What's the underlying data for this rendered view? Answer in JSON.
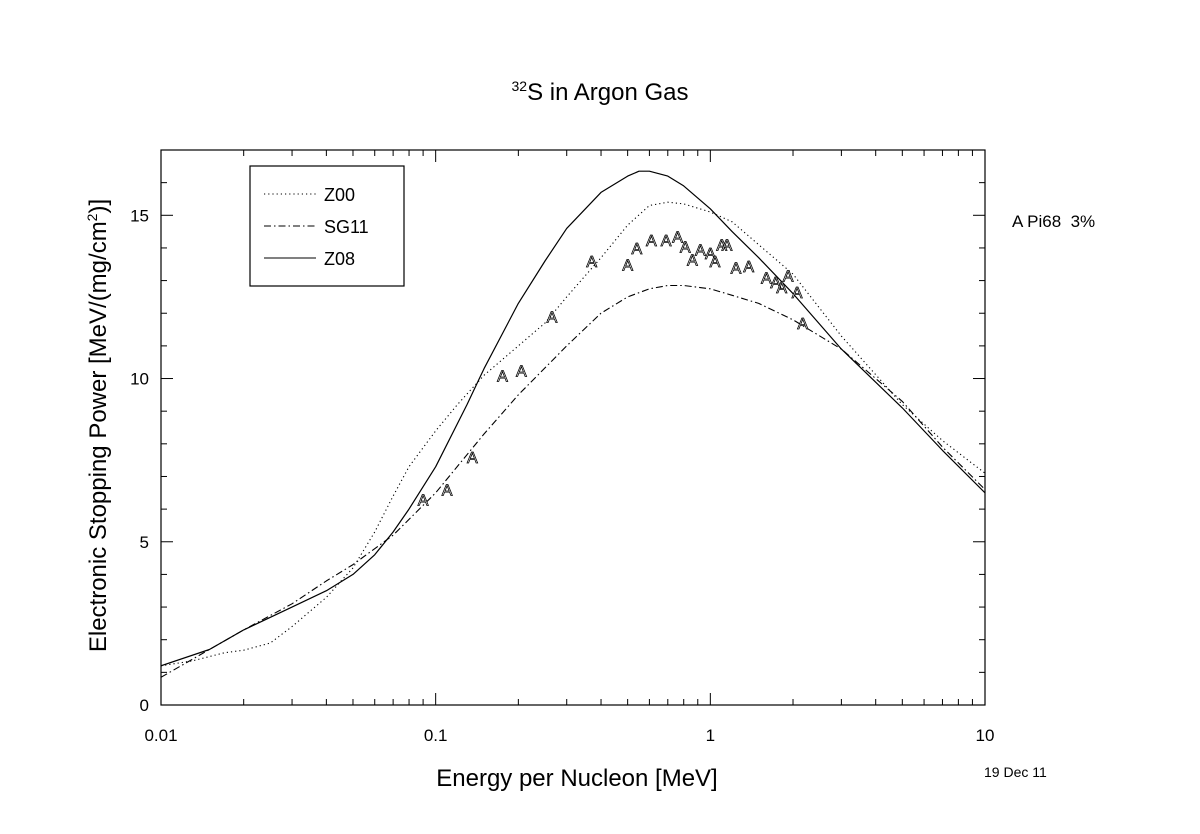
{
  "chart_data": {
    "type": "line",
    "title_sup": "32",
    "title_main": "S in Argon Gas",
    "xlabel": "Energy per Nucleon [MeV]",
    "ylabel": "Electronic Stopping Power [MeV/(mg/cm",
    "ylabel_sup": "2",
    "ylabel_end": ")]",
    "xscale": "log",
    "xlim": [
      0.01,
      10
    ],
    "ylim": [
      0,
      17
    ],
    "x_ticks": [
      {
        "value": 0.01,
        "label": "0.01"
      },
      {
        "value": 0.1,
        "label": "0.1"
      },
      {
        "value": 1,
        "label": "1"
      },
      {
        "value": 10,
        "label": "10"
      }
    ],
    "y_ticks": [
      {
        "value": 0,
        "label": "0"
      },
      {
        "value": 5,
        "label": "5"
      },
      {
        "value": 10,
        "label": "10"
      },
      {
        "value": 15,
        "label": "15"
      }
    ],
    "grid": false,
    "legend_position": "top-left",
    "series": [
      {
        "name": "Z00",
        "style": "dotted",
        "points": [
          [
            0.01,
            1.2
          ],
          [
            0.013,
            1.35
          ],
          [
            0.017,
            1.6
          ],
          [
            0.02,
            1.68
          ],
          [
            0.025,
            1.9
          ],
          [
            0.03,
            2.4
          ],
          [
            0.04,
            3.3
          ],
          [
            0.05,
            4.2
          ],
          [
            0.06,
            5.3
          ],
          [
            0.07,
            6.4
          ],
          [
            0.08,
            7.3
          ],
          [
            0.1,
            8.4
          ],
          [
            0.12,
            9.2
          ],
          [
            0.15,
            10.1
          ],
          [
            0.2,
            11.0
          ],
          [
            0.25,
            11.7
          ],
          [
            0.3,
            12.5
          ],
          [
            0.4,
            13.7
          ],
          [
            0.5,
            14.7
          ],
          [
            0.6,
            15.3
          ],
          [
            0.7,
            15.4
          ],
          [
            0.8,
            15.35
          ],
          [
            1.0,
            15.1
          ],
          [
            1.2,
            14.8
          ],
          [
            1.5,
            14.1
          ],
          [
            2,
            13.2
          ],
          [
            3,
            11.3
          ],
          [
            5,
            9.2
          ],
          [
            7,
            8.1
          ],
          [
            10,
            7.1
          ]
        ]
      },
      {
        "name": "SG11",
        "style": "dashdot",
        "points": [
          [
            0.01,
            0.85
          ],
          [
            0.013,
            1.4
          ],
          [
            0.02,
            2.3
          ],
          [
            0.03,
            3.1
          ],
          [
            0.04,
            3.8
          ],
          [
            0.05,
            4.3
          ],
          [
            0.07,
            5.2
          ],
          [
            0.1,
            6.5
          ],
          [
            0.15,
            8.3
          ],
          [
            0.2,
            9.5
          ],
          [
            0.3,
            11.0
          ],
          [
            0.4,
            12.0
          ],
          [
            0.5,
            12.5
          ],
          [
            0.6,
            12.75
          ],
          [
            0.7,
            12.85
          ],
          [
            0.8,
            12.85
          ],
          [
            1.0,
            12.75
          ],
          [
            1.2,
            12.55
          ],
          [
            1.5,
            12.3
          ],
          [
            2,
            11.8
          ],
          [
            3,
            10.9
          ],
          [
            5,
            9.3
          ],
          [
            7,
            7.9
          ],
          [
            10,
            6.6
          ]
        ]
      },
      {
        "name": "Z08",
        "style": "solid",
        "points": [
          [
            0.01,
            1.2
          ],
          [
            0.015,
            1.7
          ],
          [
            0.02,
            2.3
          ],
          [
            0.03,
            3.0
          ],
          [
            0.04,
            3.5
          ],
          [
            0.05,
            4.0
          ],
          [
            0.06,
            4.6
          ],
          [
            0.07,
            5.3
          ],
          [
            0.08,
            6.0
          ],
          [
            0.1,
            7.3
          ],
          [
            0.13,
            9.2
          ],
          [
            0.15,
            10.3
          ],
          [
            0.2,
            12.3
          ],
          [
            0.25,
            13.6
          ],
          [
            0.3,
            14.6
          ],
          [
            0.4,
            15.7
          ],
          [
            0.5,
            16.2
          ],
          [
            0.55,
            16.35
          ],
          [
            0.6,
            16.35
          ],
          [
            0.7,
            16.2
          ],
          [
            0.8,
            15.9
          ],
          [
            1.0,
            15.2
          ],
          [
            1.2,
            14.5
          ],
          [
            1.5,
            13.7
          ],
          [
            2,
            12.6
          ],
          [
            3,
            10.9
          ],
          [
            5,
            9.1
          ],
          [
            7,
            7.8
          ],
          [
            10,
            6.5
          ]
        ]
      }
    ],
    "markers": {
      "symbol": "A",
      "points": [
        [
          0.09,
          6.3
        ],
        [
          0.11,
          6.6
        ],
        [
          0.136,
          7.6
        ],
        [
          0.175,
          10.1
        ],
        [
          0.205,
          10.25
        ],
        [
          0.265,
          11.9
        ],
        [
          0.37,
          13.6
        ],
        [
          0.5,
          13.5
        ],
        [
          0.54,
          14.0
        ],
        [
          0.61,
          14.25
        ],
        [
          0.69,
          14.25
        ],
        [
          0.76,
          14.35
        ],
        [
          0.81,
          14.05
        ],
        [
          0.86,
          13.65
        ],
        [
          0.92,
          13.95
        ],
        [
          1.0,
          13.85
        ],
        [
          1.04,
          13.6
        ],
        [
          1.1,
          14.1
        ],
        [
          1.15,
          14.1
        ],
        [
          1.24,
          13.4
        ],
        [
          1.38,
          13.45
        ],
        [
          1.6,
          13.1
        ],
        [
          1.73,
          12.95
        ],
        [
          1.82,
          12.8
        ],
        [
          1.92,
          13.15
        ],
        [
          2.07,
          12.65
        ],
        [
          2.17,
          11.7
        ]
      ]
    }
  },
  "legend": {
    "items": [
      "Z00",
      "SG11",
      "Z08"
    ]
  },
  "annotations": {
    "side_note": "A Pi68  3%",
    "date": "19 Dec 11"
  }
}
